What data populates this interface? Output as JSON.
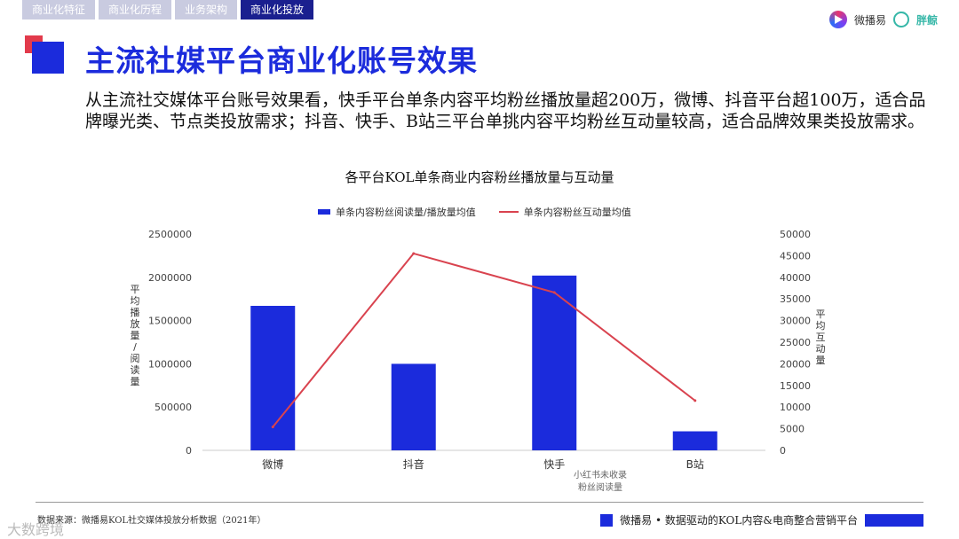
{
  "tabs": [
    "商业化特征",
    "商业化历程",
    "业务架构",
    "商业化投放"
  ],
  "brand": {
    "name1": "微播易",
    "name2": "胖鲸"
  },
  "page_title": "主流社媒平台商业化账号效果",
  "description": "从主流社交媒体平台账号效果看，快手平台单条内容平均粉丝播放量超200万，微博、抖音平台超100万，适合品牌曝光类、节点类投放需求；抖音、快手、B站三平台单挑内容平均粉丝互动量较高，适合品牌效果类投放需求。",
  "note": "小红书未收录\n粉丝阅读量",
  "source": "数据来源：微播易KOL社交媒体投放分析数据（2021年）",
  "slogan": "微播易 • 数据驱动的KOL内容&电商整合营销平台",
  "watermark": "大数跨境",
  "colors": {
    "accent": "#1b2bdc",
    "line": "#d9434f"
  },
  "chart_data": {
    "type": "bar",
    "title": "各平台KOL单条商业内容粉丝播放量与互动量",
    "categories": [
      "微博",
      "抖音",
      "快手",
      "B站"
    ],
    "ylabel": "平均播放量/阅读量",
    "y2label": "平均互动量",
    "ylim": [
      0,
      2500000
    ],
    "y2lim": [
      0,
      50000
    ],
    "yticks": [
      "0",
      "500000",
      "1000000",
      "1500000",
      "2000000",
      "2500000"
    ],
    "y2ticks": [
      "0",
      "5000",
      "10000",
      "15000",
      "20000",
      "25000",
      "30000",
      "35000",
      "40000",
      "45000",
      "50000"
    ],
    "legend_position": "top",
    "series": [
      {
        "name": "单条内容粉丝阅读量/播放量均值",
        "kind": "bar",
        "axis": "left",
        "values": [
          1670000,
          1000000,
          2020000,
          220000
        ]
      },
      {
        "name": "单条内容粉丝互动量均值",
        "kind": "line",
        "axis": "right",
        "values": [
          5400,
          45500,
          36500,
          11500
        ]
      }
    ]
  }
}
